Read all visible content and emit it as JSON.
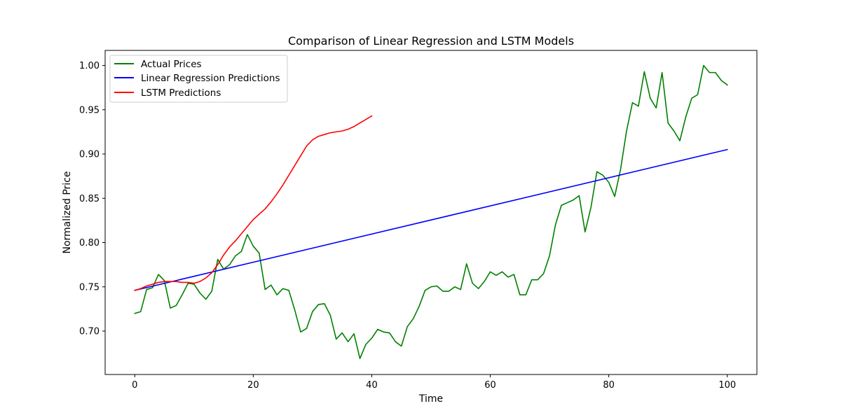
{
  "chart_data": {
    "type": "line",
    "title": "Comparison of Linear Regression and LSTM Models",
    "xlabel": "Time",
    "ylabel": "Normalized Price",
    "xlim": [
      -5,
      105
    ],
    "ylim": [
      0.651,
      1.017
    ],
    "xticks": [
      0,
      20,
      40,
      60,
      80,
      100
    ],
    "yticks": [
      0.7,
      0.75,
      0.8,
      0.85,
      0.9,
      0.95,
      1.0
    ],
    "xtick_labels": [
      "0",
      "20",
      "40",
      "60",
      "80",
      "100"
    ],
    "ytick_labels": [
      "0.70",
      "0.75",
      "0.80",
      "0.85",
      "0.90",
      "0.95",
      "1.00"
    ],
    "grid": false,
    "legend_position": "top-left",
    "series": [
      {
        "name": "Actual Prices",
        "color": "#008000",
        "x": [
          0,
          1,
          2,
          3,
          4,
          5,
          6,
          7,
          8,
          9,
          10,
          11,
          12,
          13,
          14,
          15,
          16,
          17,
          18,
          19,
          20,
          21,
          22,
          23,
          24,
          25,
          26,
          27,
          28,
          29,
          30,
          31,
          32,
          33,
          34,
          35,
          36,
          37,
          38,
          39,
          40,
          41,
          42,
          43,
          44,
          45,
          46,
          47,
          48,
          49,
          50,
          51,
          52,
          53,
          54,
          55,
          56,
          57,
          58,
          59,
          60,
          61,
          62,
          63,
          64,
          65,
          66,
          67,
          68,
          69,
          70,
          71,
          72,
          73,
          74,
          75,
          76,
          77,
          78,
          79,
          80,
          81,
          82,
          83,
          84,
          85,
          86,
          87,
          88,
          89,
          90,
          91,
          92,
          93,
          94,
          95,
          96,
          97,
          98,
          99,
          100
        ],
        "y": [
          0.72,
          0.722,
          0.747,
          0.749,
          0.764,
          0.757,
          0.726,
          0.729,
          0.741,
          0.754,
          0.753,
          0.743,
          0.736,
          0.745,
          0.781,
          0.77,
          0.775,
          0.785,
          0.79,
          0.809,
          0.796,
          0.788,
          0.747,
          0.752,
          0.741,
          0.748,
          0.746,
          0.724,
          0.699,
          0.703,
          0.722,
          0.73,
          0.731,
          0.718,
          0.691,
          0.698,
          0.688,
          0.697,
          0.669,
          0.685,
          0.692,
          0.702,
          0.699,
          0.698,
          0.688,
          0.683,
          0.705,
          0.714,
          0.728,
          0.746,
          0.75,
          0.751,
          0.745,
          0.745,
          0.75,
          0.747,
          0.776,
          0.754,
          0.748,
          0.756,
          0.767,
          0.763,
          0.767,
          0.761,
          0.764,
          0.741,
          0.741,
          0.758,
          0.758,
          0.765,
          0.785,
          0.82,
          0.842,
          0.845,
          0.848,
          0.853,
          0.812,
          0.84,
          0.88,
          0.876,
          0.868,
          0.852,
          0.883,
          0.926,
          0.958,
          0.954,
          0.993,
          0.963,
          0.952,
          0.992,
          0.935,
          0.926,
          0.915,
          0.942,
          0.963,
          0.967,
          1.0,
          0.992,
          0.992,
          0.983,
          0.978
        ]
      },
      {
        "name": "Linear Regression Predictions",
        "color": "#0000ff",
        "x": [
          0,
          100
        ],
        "y": [
          0.746,
          0.905
        ]
      },
      {
        "name": "LSTM Predictions",
        "color": "#ff0000",
        "x": [
          0,
          1,
          2,
          3,
          4,
          5,
          6,
          7,
          8,
          9,
          10,
          11,
          12,
          13,
          14,
          15,
          16,
          17,
          18,
          19,
          20,
          21,
          22,
          23,
          24,
          25,
          26,
          27,
          28,
          29,
          30,
          31,
          32,
          33,
          34,
          35,
          36,
          37,
          38,
          39,
          40
        ],
        "y": [
          0.746,
          0.748,
          0.751,
          0.753,
          0.755,
          0.756,
          0.756,
          0.756,
          0.755,
          0.755,
          0.754,
          0.756,
          0.76,
          0.766,
          0.775,
          0.786,
          0.795,
          0.802,
          0.81,
          0.818,
          0.826,
          0.832,
          0.838,
          0.846,
          0.855,
          0.865,
          0.876,
          0.887,
          0.898,
          0.909,
          0.916,
          0.92,
          0.922,
          0.924,
          0.925,
          0.926,
          0.928,
          0.931,
          0.935,
          0.939,
          0.943
        ]
      }
    ]
  }
}
